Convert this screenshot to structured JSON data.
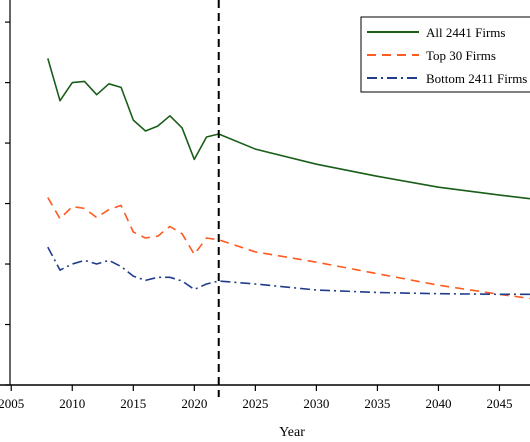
{
  "chart_data": {
    "type": "line",
    "xlabel": "Year",
    "ylabel": "",
    "title": "",
    "xlim": [
      2004.9,
      2047.5
    ],
    "ylim": [
      0,
      6.2
    ],
    "x_ticks": [
      2005,
      2010,
      2015,
      2020,
      2025,
      2030,
      2035,
      2040,
      2045
    ],
    "x_tick_labels": [
      "2005",
      "2010",
      "2015",
      "2020",
      "2025",
      "2030",
      "2035",
      "2040",
      "2045"
    ],
    "y_ticks": [
      0,
      1,
      2,
      3,
      4,
      5,
      6
    ],
    "y_tick_labels": [
      "",
      "",
      "",
      "",
      "",
      "",
      ""
    ],
    "vline": {
      "x": 2022,
      "style": "dashed",
      "color": "#000000"
    },
    "grid": false,
    "legend_position": "top-right",
    "series": [
      {
        "name": "All 2441 Firms",
        "color": "#1a5e1a",
        "dash": "solid",
        "x": [
          2008,
          2009,
          2010,
          2011,
          2012,
          2013,
          2014,
          2015,
          2016,
          2017,
          2018,
          2019,
          2020,
          2021,
          2022,
          2025,
          2030,
          2035,
          2040,
          2045,
          2047.5
        ],
        "y": [
          5.4,
          4.7,
          5.0,
          5.02,
          4.8,
          4.98,
          4.92,
          4.38,
          4.2,
          4.28,
          4.45,
          4.25,
          3.73,
          4.1,
          4.15,
          3.9,
          3.65,
          3.45,
          3.27,
          3.14,
          3.08
        ]
      },
      {
        "name": "Top 30 Firms",
        "color": "#ff5a1f",
        "dash": "dashed",
        "x": [
          2008,
          2009,
          2010,
          2011,
          2012,
          2013,
          2014,
          2015,
          2016,
          2017,
          2018,
          2019,
          2020,
          2021,
          2022,
          2025,
          2030,
          2035,
          2040,
          2045,
          2047.5
        ],
        "y": [
          3.1,
          2.75,
          2.95,
          2.92,
          2.77,
          2.9,
          2.97,
          2.53,
          2.43,
          2.46,
          2.62,
          2.5,
          2.16,
          2.43,
          2.4,
          2.2,
          2.03,
          1.84,
          1.65,
          1.5,
          1.43
        ]
      },
      {
        "name": "Bottom 2411 Firms",
        "color": "#1f3d8a",
        "dash": "dashdot",
        "x": [
          2008,
          2009,
          2010,
          2011,
          2012,
          2013,
          2014,
          2015,
          2016,
          2017,
          2018,
          2019,
          2020,
          2021,
          2022,
          2025,
          2030,
          2035,
          2040,
          2045,
          2047.5
        ],
        "y": [
          2.28,
          1.9,
          2.0,
          2.06,
          2.0,
          2.06,
          1.96,
          1.8,
          1.73,
          1.78,
          1.78,
          1.72,
          1.58,
          1.67,
          1.72,
          1.67,
          1.57,
          1.53,
          1.51,
          1.5,
          1.5
        ]
      }
    ]
  }
}
